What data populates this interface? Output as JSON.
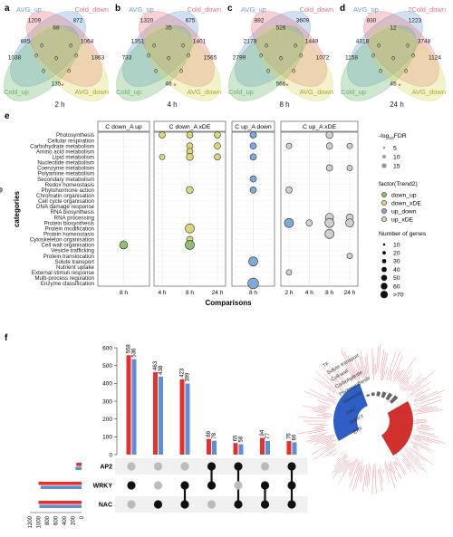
{
  "panel_labels": {
    "a": "a",
    "b": "b",
    "c": "c",
    "d": "d",
    "e": "e",
    "f": "f"
  },
  "venns": [
    {
      "time": "2 h",
      "labels": {
        "tl": "AVG_up",
        "tr": "Cold_down",
        "bl": "Cold_up",
        "br": "AVG_down"
      },
      "nums": {
        "a_only": "1209",
        "b_only": "872",
        "ab": "68",
        "a_c": "685",
        "b_d": "1064",
        "c_only": "1038",
        "d_only": "1863",
        "a_c_b": "0",
        "a_b_d": "0",
        "mid": "0",
        "a_d": "0",
        "b_c": "0",
        "c_d": "135",
        "c_d_a": "0",
        "c_d_b": "0"
      }
    },
    {
      "time": "4 h",
      "labels": {
        "tl": "AVG_up",
        "tr": "Cold_down",
        "bl": "Cold_up",
        "br": "AVG_down"
      },
      "nums": {
        "a_only": "1320",
        "b_only": "675",
        "ab": "35",
        "a_c": "1351",
        "b_d": "1401",
        "c_only": "733",
        "d_only": "1565",
        "a_c_b": "0",
        "a_b_d": "0",
        "mid": "0",
        "a_d": "0",
        "b_c": "0",
        "c_d": "46",
        "c_d_a": "0",
        "c_d_b": "0"
      }
    },
    {
      "time": "8 h",
      "labels": {
        "tl": "AVG_up",
        "tr": "Cold_down",
        "bl": "Cold_up",
        "br": "AVG_down"
      },
      "nums": {
        "a_only": "892",
        "b_only": "3609",
        "ab": "526",
        "a_c": "2179",
        "b_d": "1449",
        "c_only": "2799",
        "d_only": "1072",
        "a_c_b": "0",
        "a_b_d": "0",
        "mid": "0",
        "a_d": "0",
        "b_c": "0",
        "c_d": "566",
        "c_d_a": "0",
        "c_d_b": "0"
      }
    },
    {
      "time": "24 h",
      "labels": {
        "tl": "AVG_up",
        "tr": "2Cold_down",
        "bl": "Cold_up",
        "br": "AVG_down"
      },
      "nums": {
        "a_only": "830",
        "b_only": "1223",
        "ab": "12",
        "a_c": "4318",
        "b_d": "3748",
        "c_only": "1158",
        "d_only": "1124",
        "a_c_b": "0",
        "a_b_d": "0",
        "mid": "0",
        "a_d": "0",
        "b_c": "0",
        "c_d": "45",
        "c_d_a": "0",
        "c_d_b": "0"
      }
    }
  ],
  "colors": {
    "blue": "#6a9fd8",
    "red": "#e8707a",
    "green": "#6ab36a",
    "yellow": "#d8d860",
    "star": "#e03030",
    "bar_red": "#e8302a",
    "bar_blue": "#5b8fd6",
    "dot_dark": "#111111",
    "dot_light": "#bbbbbb",
    "circ_green": "#8ac070",
    "circ_yellow": "#d8d878",
    "circ_blue": "#7fa9d8",
    "circ_grey": "#cfcfcf"
  },
  "bubble": {
    "ylabel": "categories",
    "xlabel": "Comparisons",
    "facets": [
      {
        "title": "C down_A up",
        "ticks": [
          "8 h"
        ]
      },
      {
        "title": "C down_A xDE",
        "ticks": [
          "4 h",
          "8 h",
          "24 h"
        ]
      },
      {
        "title": "C up_A down",
        "ticks": [
          "8 h"
        ]
      },
      {
        "title": "C up_A xDE",
        "ticks": [
          "2 h",
          "4 h",
          "8 h",
          "24 h"
        ]
      }
    ],
    "categories": [
      "Photosynthesis",
      "Cellular respiration",
      "Carbohydrate metabolism",
      "Amino acid metabolism",
      "Lipid metabolism",
      "Nucleotide metabolism",
      "Coenzyme metabolism",
      "Polyamine metabolism",
      "Secondary metabolism",
      "Redox homeostasis",
      "Phytohormone action",
      "Chromatin organisation",
      "Cell cycle organisation",
      "DNA damage response",
      "RNA biosynthesis",
      "RNA processing",
      "Protein biosynthesis",
      "Protein modification",
      "Protein homeostasis",
      "Cytoskeleton organisation",
      "Cell wall organisation",
      "Vesicle trafficking",
      "Protein translocation",
      "Solute transport",
      "Nutrient uptake",
      "External stimuli response",
      "Multi-process regulation",
      "Enzyme classification"
    ],
    "points": [
      {
        "facet": 1,
        "x": "4 h",
        "cat": "Photosynthesis",
        "size": 15,
        "trend": "down_xDE"
      },
      {
        "facet": 1,
        "x": "8 h",
        "cat": "Photosynthesis",
        "size": 15,
        "trend": "down_xDE"
      },
      {
        "facet": 1,
        "x": "24 h",
        "cat": "Photosynthesis",
        "size": 15,
        "trend": "down_xDE"
      },
      {
        "facet": 2,
        "x": "8 h",
        "cat": "Photosynthesis",
        "size": 15,
        "trend": "up_down"
      },
      {
        "facet": 3,
        "x": "8 h",
        "cat": "Photosynthesis",
        "size": 20,
        "trend": "up_xDE"
      },
      {
        "facet": 1,
        "x": "8 h",
        "cat": "Carbohydrate metabolism",
        "size": 15,
        "trend": "down_xDE"
      },
      {
        "facet": 1,
        "x": "24 h",
        "cat": "Carbohydrate metabolism",
        "size": 15,
        "trend": "down_xDE"
      },
      {
        "facet": 2,
        "x": "8 h",
        "cat": "Carbohydrate metabolism",
        "size": 15,
        "trend": "up_down"
      },
      {
        "facet": 3,
        "x": "2 h",
        "cat": "Carbohydrate metabolism",
        "size": 10,
        "trend": "up_xDE"
      },
      {
        "facet": 3,
        "x": "8 h",
        "cat": "Carbohydrate metabolism",
        "size": 15,
        "trend": "up_xDE"
      },
      {
        "facet": 3,
        "x": "24 h",
        "cat": "Carbohydrate metabolism",
        "size": 10,
        "trend": "up_xDE"
      },
      {
        "facet": 1,
        "x": "8 h",
        "cat": "Amino acid metabolism",
        "size": 15,
        "trend": "down_xDE"
      },
      {
        "facet": 1,
        "x": "4 h",
        "cat": "Lipid metabolism",
        "size": 10,
        "trend": "down_xDE"
      },
      {
        "facet": 1,
        "x": "8 h",
        "cat": "Lipid metabolism",
        "size": 20,
        "trend": "down_xDE"
      },
      {
        "facet": 1,
        "x": "24 h",
        "cat": "Lipid metabolism",
        "size": 15,
        "trend": "down_xDE"
      },
      {
        "facet": 2,
        "x": "8 h",
        "cat": "Lipid metabolism",
        "size": 15,
        "trend": "up_down"
      },
      {
        "facet": 3,
        "x": "8 h",
        "cat": "Coenzyme metabolism",
        "size": 15,
        "trend": "up_xDE"
      },
      {
        "facet": 3,
        "x": "24 h",
        "cat": "Coenzyme metabolism",
        "size": 10,
        "trend": "up_xDE"
      },
      {
        "facet": 2,
        "x": "8 h",
        "cat": "Secondary metabolism",
        "size": 15,
        "trend": "up_down"
      },
      {
        "facet": 1,
        "x": "8 h",
        "cat": "Phytohormone action",
        "size": 20,
        "trend": "down_xDE"
      },
      {
        "facet": 2,
        "x": "4 h",
        "cat": "Phytohormone action",
        "size": 5,
        "trend": "up_down"
      },
      {
        "facet": 2,
        "x": "8 h",
        "cat": "Phytohormone action",
        "size": 15,
        "trend": "up_down"
      },
      {
        "facet": 3,
        "x": "2 h",
        "cat": "Phytohormone action",
        "size": 15,
        "trend": "up_xDE"
      },
      {
        "facet": 3,
        "x": "8 h",
        "cat": "RNA processing",
        "size": 30,
        "trend": "up_xDE"
      },
      {
        "facet": 3,
        "x": "24 h",
        "cat": "RNA processing",
        "size": 20,
        "trend": "up_xDE"
      },
      {
        "facet": 3,
        "x": "2 h",
        "cat": "Protein biosynthesis",
        "size": 40,
        "trend": "up_down"
      },
      {
        "facet": 3,
        "x": "4 h",
        "cat": "Protein biosynthesis",
        "size": 15,
        "trend": "up_xDE"
      },
      {
        "facet": 3,
        "x": "8 h",
        "cat": "Protein biosynthesis",
        "size": 40,
        "trend": "up_xDE"
      },
      {
        "facet": 3,
        "x": "24 h",
        "cat": "Protein biosynthesis",
        "size": 30,
        "trend": "up_xDE"
      },
      {
        "facet": 1,
        "x": "8 h",
        "cat": "Protein modification",
        "size": 40,
        "trend": "down_xDE"
      },
      {
        "facet": 3,
        "x": "8 h",
        "cat": "Protein homeostasis",
        "size": 40,
        "trend": "up_xDE"
      },
      {
        "facet": 1,
        "x": "8 h",
        "cat": "Cytoskeleton organisation",
        "size": 15,
        "trend": "down_xDE"
      },
      {
        "facet": 0,
        "x": "8 h",
        "cat": "Cell wall organisation",
        "size": 30,
        "trend": "down_up"
      },
      {
        "facet": 1,
        "x": "8 h",
        "cat": "Cell wall organisation",
        "size": 40,
        "trend": "down_up"
      },
      {
        "facet": 3,
        "x": "24 h",
        "cat": "Protein translocation",
        "size": 10,
        "trend": "up_xDE"
      },
      {
        "facet": 2,
        "x": "8 h",
        "cat": "Solute transport",
        "size": 40,
        "trend": "up_down"
      },
      {
        "facet": 3,
        "x": "2 h",
        "cat": "External stimuli response",
        "size": 10,
        "trend": "up_xDE"
      },
      {
        "facet": 2,
        "x": "8 h",
        "cat": "Enzyme classification",
        "size": 60,
        "trend": "up_down"
      }
    ],
    "legend": {
      "fdr": {
        "title": "-log10FDR",
        "t1": "-log",
        "t2": "10",
        "t3": "FDR",
        "items": [
          "5",
          "10",
          "15"
        ]
      },
      "trend": {
        "title": "factor(Trend2)",
        "items": [
          "down_up",
          "down_xDE",
          "up_down",
          "up_xDE"
        ]
      },
      "ngenes": {
        "title": "Number of genes",
        "items": [
          "10",
          "20",
          "30",
          "40",
          "50",
          "60",
          ">70"
        ]
      }
    }
  },
  "upset": {
    "yticks": [
      "0",
      "100",
      "200",
      "300",
      "400",
      "500",
      "600"
    ],
    "bars": [
      {
        "red": 558,
        "blue": 536,
        "rl": "558",
        "bl": "536"
      },
      {
        "red": 463,
        "blue": 438,
        "rl": "463",
        "bl": "438"
      },
      {
        "red": 423,
        "blue": 399,
        "rl": "423",
        "bl": "399"
      },
      {
        "red": 88,
        "blue": 78,
        "rl": "88",
        "bl": "78"
      },
      {
        "red": 65,
        "blue": 58,
        "rl": "65",
        "bl": "58"
      },
      {
        "red": 94,
        "blue": 77,
        "rl": "94",
        "bl": "77"
      },
      {
        "red": 76,
        "blue": 69,
        "rl": "76",
        "bl": "69"
      }
    ],
    "sets": [
      "AP2",
      "WRKY",
      "NAC"
    ],
    "set_sizes": [
      {
        "red": 120,
        "blue": 140
      },
      {
        "red": 1000,
        "blue": 950
      },
      {
        "red": 1000,
        "blue": 980
      }
    ],
    "set_ticks": [
      "1200",
      "1000",
      "800",
      "600",
      "400",
      "200",
      "0"
    ],
    "matrix": [
      [
        0,
        1,
        0
      ],
      [
        0,
        0,
        1
      ],
      [
        0,
        1,
        1
      ],
      [
        1,
        1,
        0
      ],
      [
        1,
        0,
        1
      ],
      [
        0,
        1,
        1
      ],
      [
        1,
        1,
        1
      ]
    ]
  },
  "circle": {
    "labels": [
      "TF",
      "Solute transport",
      "Cell wall",
      "Carbohydrate",
      "Photosynthesis",
      "Hormone",
      "NAC",
      "WRKY",
      "ERF"
    ]
  }
}
